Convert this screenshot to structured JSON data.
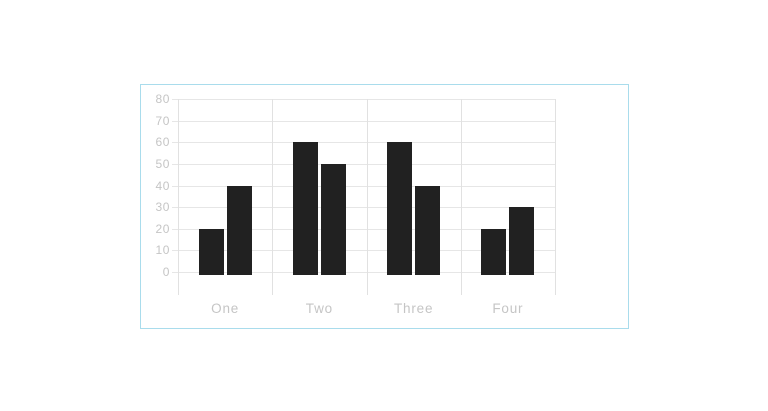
{
  "chart_data": {
    "type": "bar",
    "title": "",
    "xlabel": "",
    "ylabel": "",
    "categories": [
      "One",
      "Two",
      "Three",
      "Four"
    ],
    "series": [
      {
        "values": [
          20,
          60,
          60,
          20
        ]
      },
      {
        "values": [
          40,
          50,
          40,
          30
        ]
      }
    ],
    "ylim": [
      0,
      80
    ],
    "yticks": [
      0,
      10,
      20,
      30,
      40,
      50,
      60,
      70,
      80
    ],
    "grid": true,
    "legend_position": "none"
  },
  "colors": {
    "background": "#ffffff",
    "card_border": "#a9dcec",
    "grid_horizontal": "#e6e6e6",
    "grid_vertical": "#e1e1e1",
    "tick_label": "#c5c5c5",
    "bar": "#212121"
  }
}
